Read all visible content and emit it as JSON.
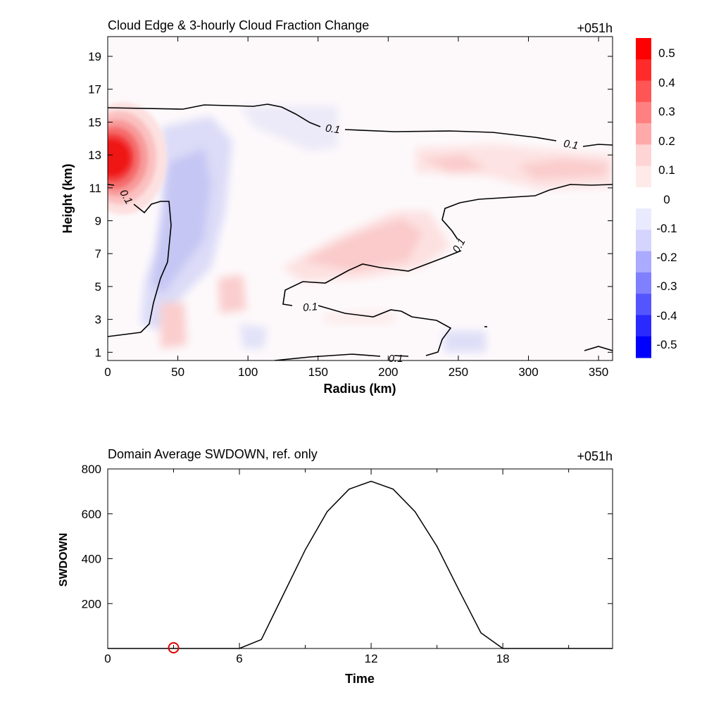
{
  "chart_data": [
    {
      "type": "heatmap",
      "title": "Cloud Edge & 3-hourly Cloud Fraction Change",
      "time_label": "+051h",
      "xlabel": "Radius (km)",
      "ylabel": "Height (km)",
      "xlim": [
        0,
        360
      ],
      "ylim": [
        0.5,
        20.2
      ],
      "xticks": [
        0,
        50,
        100,
        150,
        200,
        250,
        300,
        350
      ],
      "yticks": [
        1,
        3,
        5,
        7,
        9,
        11,
        13,
        15,
        17,
        19
      ],
      "colorbar": {
        "levels": [
          0.5,
          0.4,
          0.3,
          0.2,
          0.1,
          0,
          -0.1,
          -0.2,
          -0.3,
          -0.4,
          -0.5
        ],
        "labels": [
          "0.5",
          "0.4",
          "0.3",
          "0.2",
          "0.1",
          "0",
          "-0.1",
          "-0.2",
          "-0.3",
          "-0.4",
          "-0.5"
        ],
        "colors": [
          "#ff0000",
          "#ff2a2a",
          "#ff5555",
          "#ff8080",
          "#ffaaaa",
          "#ffd4d4",
          "#ffeaea",
          "#ffffff",
          "#eaeaff",
          "#d4d4ff",
          "#aaaaff",
          "#8080ff",
          "#5555ff",
          "#2a2aff",
          "#0000ff"
        ]
      },
      "contour_value": 0.1,
      "contour_label": "0.1",
      "features": [
        {
          "name": "red-core",
          "x": 8,
          "y": 12.8,
          "value": 0.5
        },
        {
          "name": "blue-column",
          "x": 45,
          "y": 9,
          "value": -0.2
        },
        {
          "name": "red-band-mid",
          "x": 180,
          "y": 8,
          "value": 0.15
        },
        {
          "name": "red-band-upper-right",
          "x": 320,
          "y": 11.8,
          "value": 0.15
        },
        {
          "name": "red-spot-low",
          "x": 40,
          "y": 2.5,
          "value": 0.15
        },
        {
          "name": "red-spot-mid",
          "x": 85,
          "y": 4.5,
          "value": 0.15
        }
      ]
    },
    {
      "type": "line",
      "title": "Domain Average SWDOWN, ref. only",
      "time_label": "+051h",
      "xlabel": "Time",
      "ylabel": "SWDOWN",
      "xlim": [
        0,
        23
      ],
      "ylim": [
        0,
        800
      ],
      "xticks": [
        0,
        6,
        12,
        18
      ],
      "yticks": [
        200,
        400,
        600,
        800
      ],
      "series": [
        {
          "x": [
            0,
            1,
            2,
            3,
            4,
            5,
            6,
            7,
            8,
            9,
            10,
            11,
            12,
            13,
            14,
            15,
            16,
            17,
            18,
            19,
            20,
            21,
            22,
            23
          ],
          "values": [
            0,
            0,
            0,
            0,
            0,
            0,
            0,
            40,
            240,
            440,
            610,
            710,
            745,
            710,
            610,
            455,
            260,
            70,
            0,
            0,
            0,
            0,
            0,
            0
          ],
          "color": "#000000"
        }
      ],
      "marker": {
        "x": 3,
        "y": 0,
        "color": "#e00000"
      }
    }
  ]
}
